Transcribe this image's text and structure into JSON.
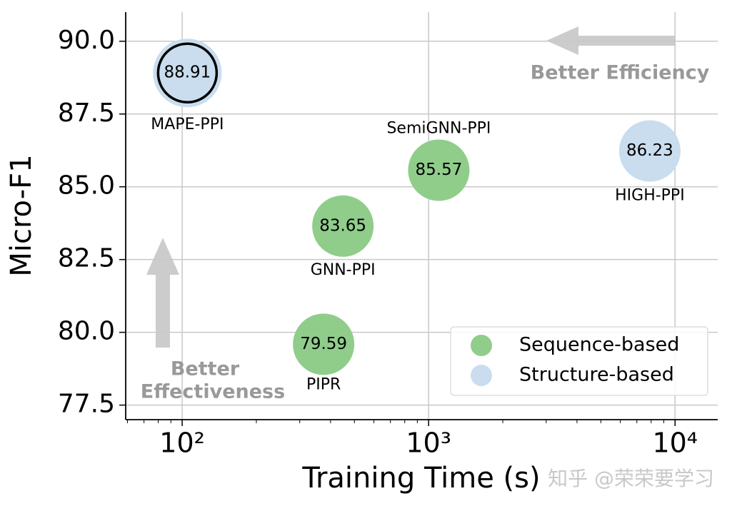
{
  "chart_data": {
    "type": "scatter",
    "x_label": "Training Time (s)",
    "y_label": "Micro-F1",
    "xscale": "log",
    "xlim": [
      59,
      14900
    ],
    "ylim": [
      77,
      91
    ],
    "xticks": [
      {
        "value": 100,
        "label": "10²"
      },
      {
        "value": 1000,
        "label": "10³"
      },
      {
        "value": 10000,
        "label": "10⁴"
      }
    ],
    "xminorticks": [
      60,
      70,
      80,
      90,
      200,
      300,
      400,
      500,
      600,
      700,
      800,
      900,
      2000,
      3000,
      4000,
      5000,
      6000,
      7000,
      8000,
      9000
    ],
    "yticks": [
      {
        "value": 77.5,
        "label": "77.5"
      },
      {
        "value": 80,
        "label": "80.0"
      },
      {
        "value": 82.5,
        "label": "82.5"
      },
      {
        "value": 85,
        "label": "85.0"
      },
      {
        "value": 87.5,
        "label": "87.5"
      },
      {
        "value": 90,
        "label": "90.0"
      }
    ],
    "grid": true,
    "legend": "lower right",
    "series": [
      {
        "name": "Sequence-based",
        "color": "#90cd8b",
        "x": [
          1100,
          449,
          375
        ],
        "values": [
          85.57,
          83.65,
          79.59
        ],
        "labels": [
          "SemiGNN-PPI",
          "GNN-PPI",
          "PIPR"
        ]
      },
      {
        "name": "Structure-based",
        "color": "#c9ddee",
        "x": [
          105,
          7900
        ],
        "values": [
          88.91,
          86.23
        ],
        "labels": [
          "MAPE-PPI",
          "HIGH-PPI"
        ],
        "edgecolors": [
          "#000000",
          null
        ]
      }
    ],
    "annotations": [
      "Better Efficiency",
      "Better",
      "Effectiveness"
    ],
    "watermark": "知乎 @荣荣要学习"
  }
}
